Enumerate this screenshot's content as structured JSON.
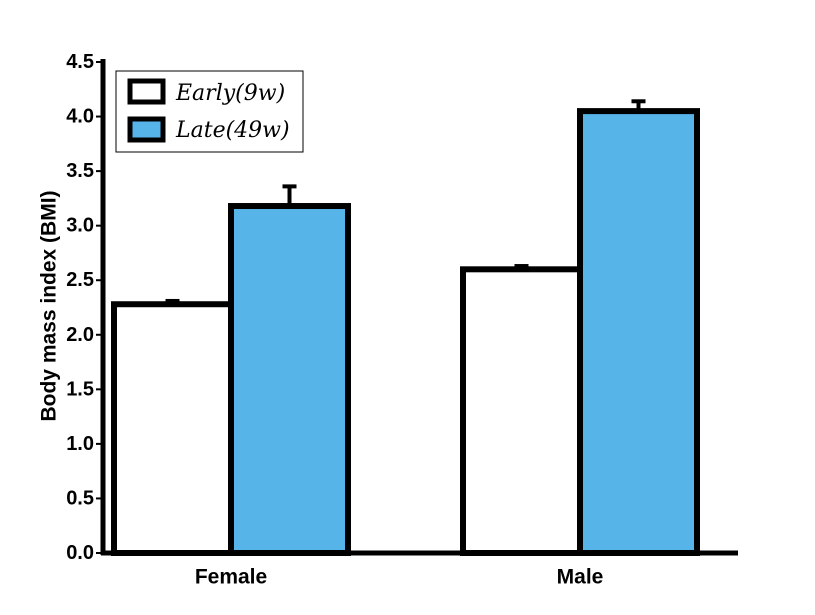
{
  "chart_data": {
    "type": "bar",
    "categories": [
      "Female",
      "Male"
    ],
    "series": [
      {
        "name": "Early(9w)",
        "values": [
          2.28,
          2.6
        ],
        "errors": [
          0.03,
          0.03
        ],
        "color": "#ffffff"
      },
      {
        "name": "Late(49w)",
        "values": [
          3.18,
          4.05
        ],
        "errors": [
          0.18,
          0.09
        ],
        "color": "#56b4e9"
      }
    ],
    "ylabel": "Body mass index (BMI)",
    "ylim": [
      0,
      4.5
    ],
    "yticks": [
      "0.0",
      "0.5",
      "1.0",
      "1.5",
      "2.0",
      "2.5",
      "3.0",
      "3.5",
      "4.0",
      "4.5"
    ],
    "grid": false,
    "legend_position": "top-left"
  }
}
